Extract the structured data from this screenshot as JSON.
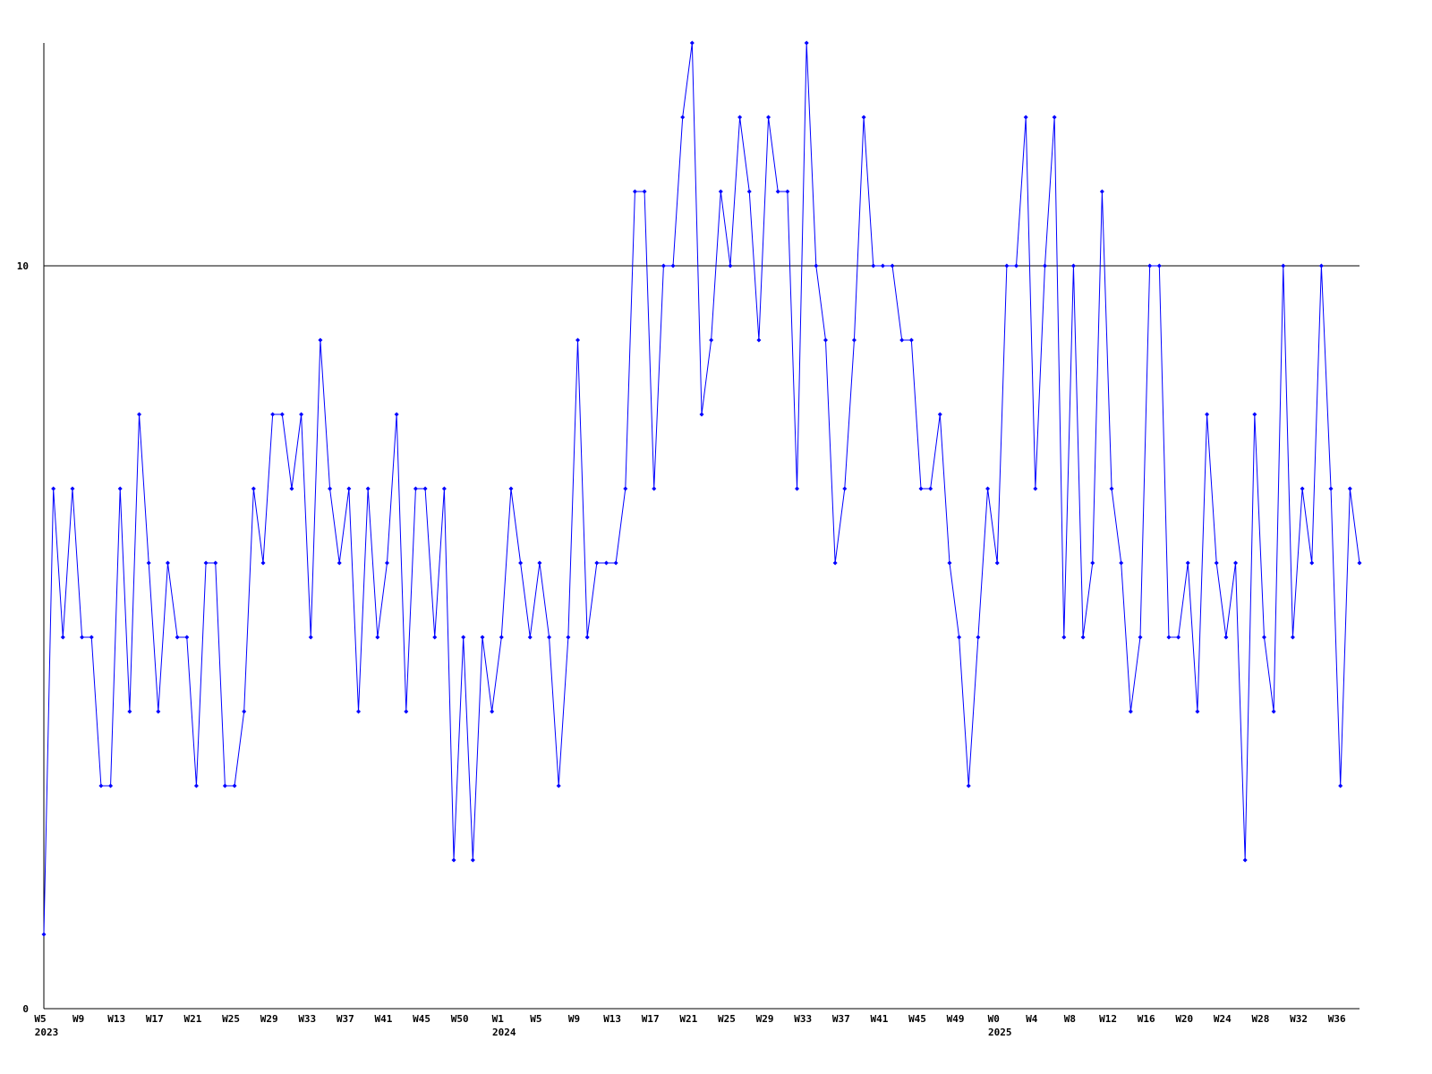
{
  "chart_data": {
    "type": "line",
    "categories": [
      "W5",
      null,
      null,
      null,
      "W9",
      null,
      null,
      null,
      "W13",
      null,
      null,
      null,
      "W17",
      null,
      null,
      null,
      "W21",
      null,
      null,
      null,
      "W25",
      null,
      null,
      null,
      "W29",
      null,
      null,
      null,
      "W33",
      null,
      null,
      null,
      "W37",
      null,
      null,
      null,
      "W41",
      null,
      null,
      null,
      "W45",
      null,
      null,
      null,
      "W50",
      null,
      null,
      null,
      "W1",
      null,
      null,
      null,
      "W5",
      null,
      null,
      null,
      "W9",
      null,
      null,
      null,
      "W13",
      null,
      null,
      null,
      "W17",
      null,
      null,
      null,
      "W21",
      null,
      null,
      null,
      "W25",
      null,
      null,
      null,
      "W29",
      null,
      null,
      null,
      "W33",
      null,
      null,
      null,
      "W37",
      null,
      null,
      null,
      "W41",
      null,
      null,
      null,
      "W45",
      null,
      null,
      null,
      "W49",
      null,
      null,
      null,
      "W0",
      null,
      null,
      null,
      "W4",
      null,
      null,
      null,
      "W8",
      null,
      null,
      null,
      "W12",
      null,
      null,
      null,
      "W16",
      null,
      null,
      null,
      "W20",
      null,
      null,
      null,
      "W24",
      null,
      null,
      null,
      "W28",
      null,
      null,
      null,
      "W32",
      null,
      null,
      null,
      "W36",
      null,
      null
    ],
    "x_years": [
      "2023",
      null,
      null,
      null,
      null,
      null,
      null,
      null,
      null,
      null,
      null,
      null,
      null,
      null,
      null,
      null,
      null,
      null,
      null,
      null,
      null,
      null,
      null,
      null,
      null,
      null,
      null,
      null,
      null,
      null,
      null,
      null,
      null,
      null,
      null,
      null,
      null,
      null,
      null,
      null,
      null,
      null,
      null,
      null,
      null,
      null,
      null,
      null,
      "2024",
      null,
      null,
      null,
      null,
      null,
      null,
      null,
      null,
      null,
      null,
      null,
      null,
      null,
      null,
      null,
      null,
      null,
      null,
      null,
      null,
      null,
      null,
      null,
      null,
      null,
      null,
      null,
      null,
      null,
      null,
      null,
      null,
      null,
      null,
      null,
      null,
      null,
      null,
      null,
      null,
      null,
      null,
      null,
      null,
      null,
      null,
      null,
      null,
      null,
      null,
      null,
      "2025",
      null,
      null,
      null,
      null,
      null,
      null,
      null,
      null,
      null,
      null,
      null,
      null,
      null,
      null,
      null,
      null,
      null,
      null,
      null,
      null,
      null,
      null,
      null,
      null,
      null,
      null,
      null,
      null,
      null,
      null,
      null,
      null,
      null,
      null,
      null,
      null,
      null,
      null
    ],
    "series": [
      {
        "color": "#0000ff",
        "values": [
          1,
          7,
          5,
          7,
          5,
          5,
          3,
          3,
          7,
          4,
          8,
          6,
          4,
          6,
          5,
          5,
          3,
          6,
          6,
          3,
          3,
          4,
          7,
          6,
          8,
          8,
          7,
          8,
          5,
          9,
          7,
          6,
          7,
          4,
          7,
          5,
          6,
          8,
          4,
          7,
          7,
          5,
          7,
          2,
          5,
          2,
          5,
          4,
          5,
          7,
          6,
          5,
          6,
          5,
          3,
          5,
          9,
          5,
          6,
          6,
          6,
          7,
          11,
          11,
          7,
          10,
          10,
          12,
          13,
          8,
          9,
          11,
          10,
          12,
          11,
          9,
          12,
          11,
          11,
          7,
          13,
          10,
          9,
          6,
          7,
          9,
          12,
          10,
          10,
          10,
          9,
          9,
          7,
          7,
          8,
          6,
          5,
          3,
          5,
          7,
          6,
          10,
          10,
          12,
          7,
          10,
          12,
          5,
          10,
          5,
          6,
          11,
          7,
          6,
          4,
          5,
          10,
          10,
          5,
          5,
          6,
          4,
          8,
          6,
          5,
          6,
          2,
          8,
          5,
          4,
          10,
          5,
          7,
          6,
          10,
          7,
          3,
          7,
          6
        ]
      }
    ],
    "ylim": [
      0,
      13
    ],
    "yticks": [
      0,
      10
    ],
    "grid": true
  }
}
